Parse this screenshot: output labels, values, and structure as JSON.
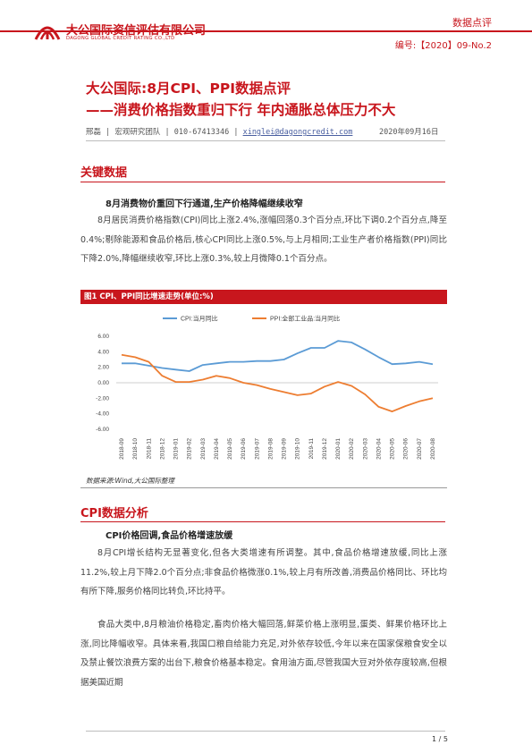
{
  "header": {
    "logo_cn": "大公国际资信评估有限公司",
    "logo_en": "DAGONG GLOBAL CREDIT RATING CO.,LTD",
    "category": "数据点评",
    "doc_no": "编号:【2020】09-No.2",
    "brand_color": "#c8161d"
  },
  "title": {
    "line1": "大公国际:8月CPI、PPI数据点评",
    "line2": "——消费价格指数重归下行  年内通胀总体压力不大"
  },
  "author": {
    "name": "邢磊",
    "team": "宏观研究团队",
    "phone": "010-67413346",
    "email": "xinglei@dagongcredit.com",
    "date": "2020年09月16日",
    "sep": "|"
  },
  "section1": {
    "title": "关键数据",
    "subhead": "8月消费物价重回下行通道,生产价格降幅继续收窄",
    "para": "8月居民消费价格指数(CPI)同比上涨2.4%,涨幅回落0.3个百分点,环比下调0.2个百分点,降至0.4%;剔除能源和食品价格后,核心CPI同比上涨0.5%,与上月相同;工业生产者价格指数(PPI)同比下降2.0%,降幅继续收窄,环比上涨0.3%,较上月微降0.1个百分点。"
  },
  "figure1": {
    "caption": "图1 CPI、PPI同比增速走势(单位:%)",
    "source": "数据来源:Wind,大公国际整理"
  },
  "chart_data": {
    "type": "line",
    "title": "",
    "xlabel": "",
    "ylabel": "",
    "ylim": [
      -6.0,
      6.0
    ],
    "yticks": [
      "6.00",
      "4.00",
      "2.00",
      "0.00",
      "-2.00",
      "-4.00",
      "-6.00"
    ],
    "grid": false,
    "legend_position": "top",
    "categories": [
      "2018-09",
      "2018-10",
      "2018-11",
      "2018-12",
      "2019-01",
      "2019-02",
      "2019-03",
      "2019-04",
      "2019-05",
      "2019-06",
      "2019-07",
      "2019-08",
      "2019-09",
      "2019-10",
      "2019-11",
      "2019-12",
      "2020-01",
      "2020-02",
      "2020-03",
      "2020-04",
      "2020-05",
      "2020-06",
      "2020-07",
      "2020-08"
    ],
    "series": [
      {
        "name": "CPI:当月同比",
        "color": "#5b9bd5",
        "values": [
          2.5,
          2.5,
          2.2,
          1.9,
          1.7,
          1.5,
          2.3,
          2.5,
          2.7,
          2.7,
          2.8,
          2.8,
          3.0,
          3.8,
          4.5,
          4.5,
          5.4,
          5.2,
          4.3,
          3.3,
          2.4,
          2.5,
          2.7,
          2.4
        ]
      },
      {
        "name": "PPI:全部工业品:当月同比",
        "color": "#ed7d31",
        "values": [
          3.6,
          3.3,
          2.7,
          0.9,
          0.1,
          0.1,
          0.4,
          0.9,
          0.6,
          0.0,
          -0.3,
          -0.8,
          -1.2,
          -1.6,
          -1.4,
          -0.5,
          0.1,
          -0.4,
          -1.5,
          -3.1,
          -3.7,
          -3.0,
          -2.4,
          -2.0
        ]
      }
    ]
  },
  "section2": {
    "title": "CPI数据分析",
    "subhead": "CPI价格回调,食品价格增速放缓",
    "para1": "8月CPI增长结构无显著变化,但各大类增速有所调整。其中,食品价格增速放缓,同比上涨11.2%,较上月下降2.0个百分点;非食品价格微涨0.1%,较上月有所改善,消费品价格同比、环比均有所下降,服务价格同比转负,环比持平。",
    "para2": "食品大类中,8月粮油价格稳定,畜肉价格大幅回落,鲜菜价格上涨明显,蛋类、鲜果价格环比上涨,同比降幅收窄。具体来看,我国口粮自给能力充足,对外依存较低,今年以来在国家保粮食安全以及禁止餐饮浪费方案的出台下,粮食价格基本稳定。食用油方面,尽管我国大豆对外依存度较高,但根据美国近期"
  },
  "footer": {
    "page": "1 / 5"
  }
}
